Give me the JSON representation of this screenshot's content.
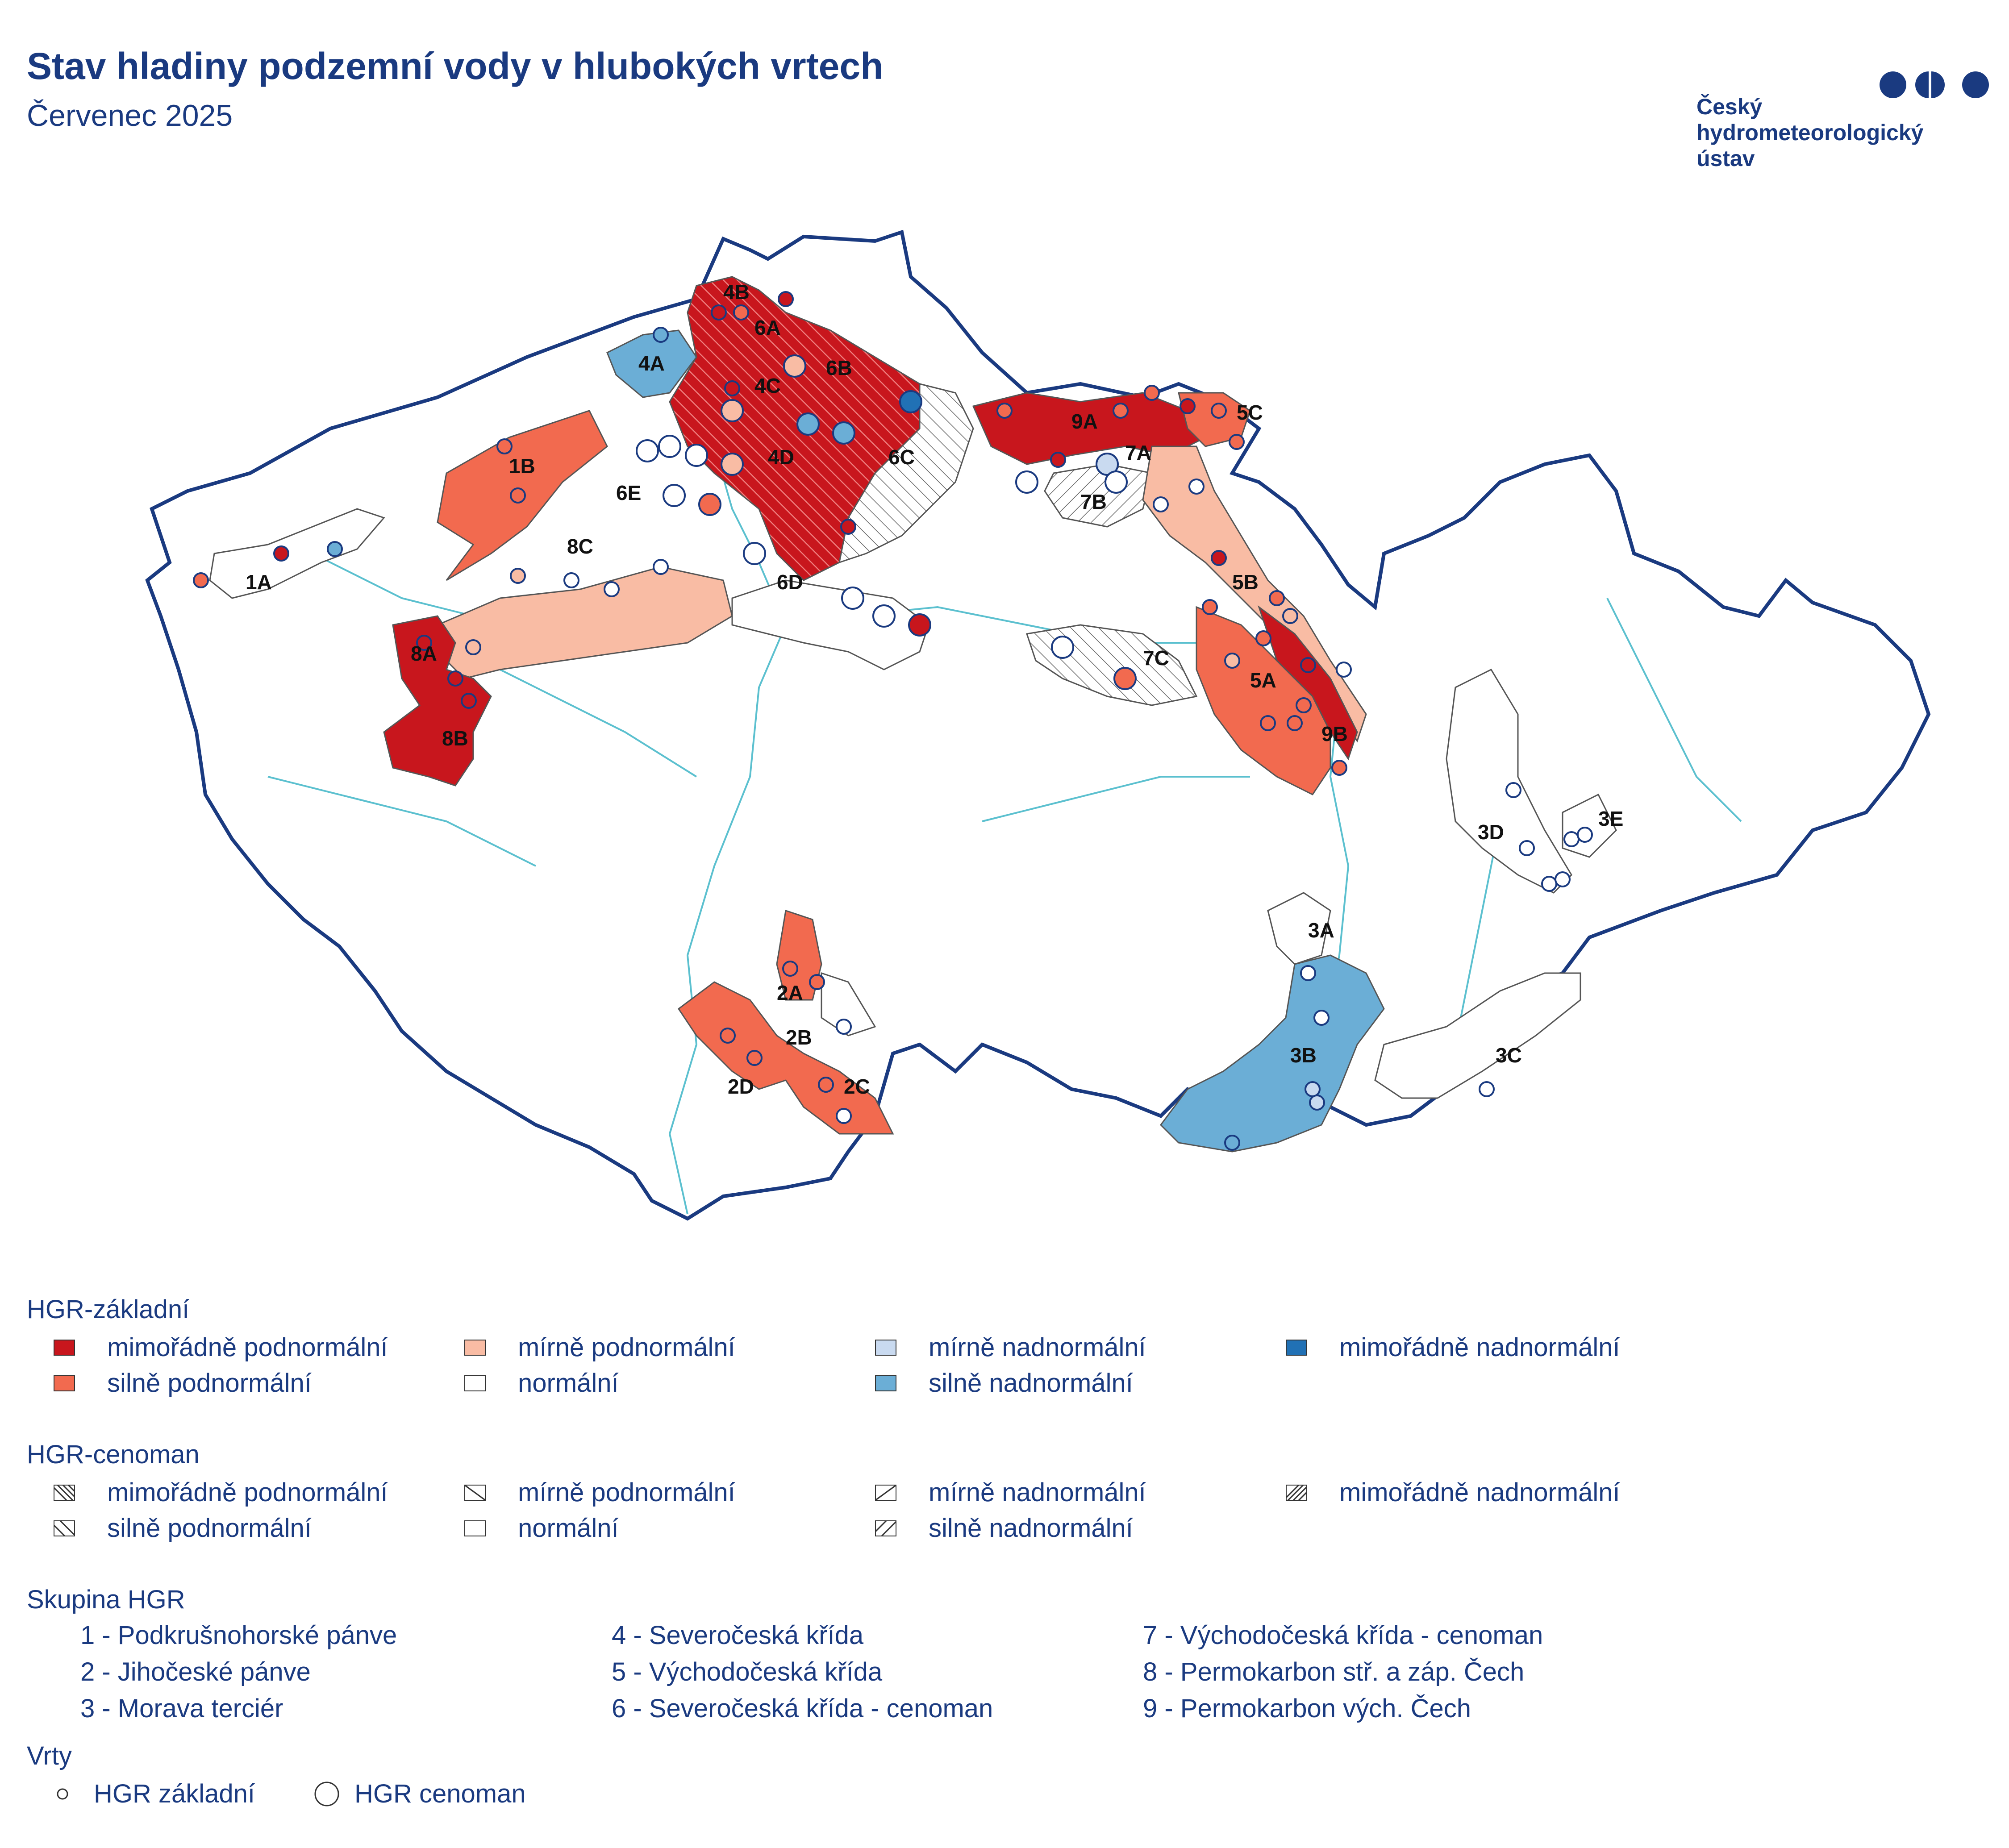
{
  "header": {
    "title": "Stav hladiny podzemní vody v hlubokých vrtech",
    "subtitle": "Červenec 2025"
  },
  "logo": {
    "line1": "Český",
    "line2": "hydrometeorologický",
    "line3": "ústav",
    "color": "#1a3a80"
  },
  "colors": {
    "mimoradne_podnormalni": "#c8161d",
    "silne_podnormalni": "#f26a4f",
    "mirne_podnormalni": "#f9bca4",
    "normalni": "#ffffff",
    "mirne_nadnormalni": "#c9daf0",
    "silne_nadnormalni": "#6baed6",
    "mimoradne_nadnormalni": "#2171b5",
    "border": "#1a3a80",
    "river": "#5bc0cf"
  },
  "map": {
    "regions": [
      {
        "label": "1A"
      },
      {
        "label": "1B"
      },
      {
        "label": "2A"
      },
      {
        "label": "2B"
      },
      {
        "label": "2C"
      },
      {
        "label": "2D"
      },
      {
        "label": "3A"
      },
      {
        "label": "3B"
      },
      {
        "label": "3C"
      },
      {
        "label": "3D"
      },
      {
        "label": "3E"
      },
      {
        "label": "4A"
      },
      {
        "label": "4B"
      },
      {
        "label": "4C"
      },
      {
        "label": "4D"
      },
      {
        "label": "5A"
      },
      {
        "label": "5B"
      },
      {
        "label": "5C"
      },
      {
        "label": "6A"
      },
      {
        "label": "6B"
      },
      {
        "label": "6C"
      },
      {
        "label": "6D"
      },
      {
        "label": "6E"
      },
      {
        "label": "7A"
      },
      {
        "label": "7B"
      },
      {
        "label": "7C"
      },
      {
        "label": "8A"
      },
      {
        "label": "8B"
      },
      {
        "label": "8C"
      },
      {
        "label": "9A"
      },
      {
        "label": "9B"
      }
    ]
  },
  "legend": {
    "zakladni": {
      "title": "HGR-základní",
      "items": [
        {
          "label": "mimořádně podnormální",
          "color": "#c8161d"
        },
        {
          "label": "mírně podnormální",
          "color": "#f9bca4"
        },
        {
          "label": "mírně nadnormální",
          "color": "#c9daf0"
        },
        {
          "label": "mimořádně nadnormální",
          "color": "#2171b5"
        },
        {
          "label": "silně podnormální",
          "color": "#f26a4f"
        },
        {
          "label": "normální",
          "color": "#ffffff"
        },
        {
          "label": "silně nadnormální",
          "color": "#6baed6"
        }
      ]
    },
    "cenoman": {
      "title": "HGR-cenoman",
      "items": [
        {
          "label": "mimořádně podnormální"
        },
        {
          "label": "mírně podnormální"
        },
        {
          "label": "mírně nadnormální"
        },
        {
          "label": "mimořádně nadnormální"
        },
        {
          "label": "silně podnormální"
        },
        {
          "label": "normální"
        },
        {
          "label": "silně nadnormální"
        }
      ]
    },
    "skupina": {
      "title": "Skupina HGR",
      "items": [
        "1 - Podkrušnohorské pánve",
        "4 - Severočeská křída",
        "7 - Východočeská křída - cenoman",
        "2 - Jihočeské pánve",
        "5 - Východočeská křída",
        "8 - Permokarbon stř. a záp. Čech",
        "3 - Morava terciér",
        "6 - Severočeská křída - cenoman",
        "9 - Permokarbon vých. Čech"
      ]
    },
    "vrty": {
      "title": "Vrty",
      "items": [
        "HGR základní",
        "HGR cenoman"
      ]
    }
  }
}
